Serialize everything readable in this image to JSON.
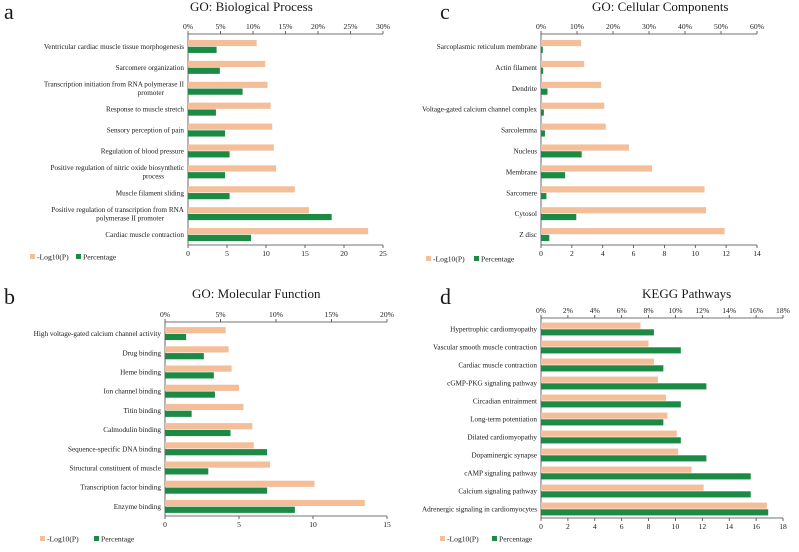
{
  "colors": {
    "log": "#f4bf98",
    "pct": "#1b8a45",
    "axis": "#444444"
  },
  "chart_data": [
    {
      "type": "bar",
      "panel": "a",
      "title": "GO: Biological Process",
      "categories": [
        "Ventricular cardiac muscle tissue morphogenesis",
        "Sarcomere organization",
        "Transcription initiation from RNA polymerase II promoter",
        "Response to muscle stretch",
        "Sensory perception of pain",
        "Regulation of blood pressure",
        "Positive regulation of nitric oxide biosynthetic process",
        "Muscle filament sliding",
        "Positive regulation of transcription from RNA polymerase II promoter",
        "Cardiac muscle contraction"
      ],
      "series": [
        {
          "name": "-Log10(P)",
          "values": [
            8.8,
            9.9,
            10.2,
            10.6,
            10.8,
            11.0,
            11.3,
            13.7,
            15.5,
            23.1
          ]
        },
        {
          "name": "Percentage",
          "values": [
            4.4,
            4.9,
            8.4,
            4.3,
            5.7,
            6.4,
            5.7,
            6.4,
            22.1,
            9.7
          ]
        }
      ],
      "bottom_axis": {
        "ticks": [
          "0",
          "5",
          "10",
          "15",
          "20",
          "25"
        ],
        "range": [
          0,
          25
        ]
      },
      "top_axis": {
        "ticks": [
          "0%",
          "5%",
          "10%",
          "15%",
          "20%",
          "25%",
          "30%"
        ],
        "range": [
          0,
          30
        ]
      }
    },
    {
      "type": "bar",
      "panel": "c",
      "title": "GO: Cellular Components",
      "categories": [
        "Sarcoplasmic reticulum membrane",
        "Actin filament",
        "Dendrite",
        "Voltage-gated calcium channel complex",
        "Sarcolemma",
        "Nucleus",
        "Membrane",
        "Sarcomere",
        "Cytosol",
        "Z disc"
      ],
      "series": [
        {
          "name": "-Log10(P)",
          "values": [
            2.6,
            2.8,
            3.9,
            4.1,
            4.2,
            5.7,
            7.2,
            10.6,
            10.7,
            11.9
          ]
        },
        {
          "name": "Percentage",
          "values": [
            0.5,
            0.6,
            1.8,
            0.8,
            1.1,
            11.3,
            6.7,
            1.5,
            9.8,
            2.3
          ]
        }
      ],
      "bottom_axis": {
        "ticks": [
          "0",
          "2",
          "4",
          "6",
          "8",
          "10",
          "12",
          "14"
        ],
        "range": [
          0,
          14
        ]
      },
      "top_axis": {
        "ticks": [
          "0%",
          "10%",
          "20%",
          "30%",
          "40%",
          "50%",
          "60%"
        ],
        "range": [
          0,
          60
        ]
      }
    },
    {
      "type": "bar",
      "panel": "b",
      "title": "GO: Molecular Function",
      "categories": [
        "High voltage-gated calcium channel activity",
        "Drug binding",
        "Heme binding",
        "Ion channel binding",
        "Titin binding",
        "Calmodulin binding",
        "Sequence-specific DNA binding",
        "Structural constituent of muscle",
        "Transcription factor binding",
        "Enzyme binding"
      ],
      "series": [
        {
          "name": "-Log10(P)",
          "values": [
            4.1,
            4.3,
            4.5,
            5.0,
            5.3,
            5.9,
            6.0,
            7.1,
            10.1,
            13.5
          ]
        },
        {
          "name": "Percentage",
          "values": [
            1.9,
            3.5,
            4.4,
            4.5,
            2.4,
            5.9,
            9.2,
            3.9,
            9.2,
            11.7
          ]
        }
      ],
      "bottom_axis": {
        "ticks": [
          "0",
          "5",
          "10",
          "15"
        ],
        "range": [
          0,
          15
        ]
      },
      "top_axis": {
        "ticks": [
          "0%",
          "5%",
          "10%",
          "15%",
          "20%"
        ],
        "range": [
          0,
          20
        ]
      }
    },
    {
      "type": "bar",
      "panel": "d",
      "title": "KEGG Pathways",
      "categories": [
        "Hypertrophic cardiomyopathy",
        "Vascular smooth muscle contraction",
        "Cardiac muscle contraction",
        "cGMP-PKG signaling pathway",
        "Circadian entrainment",
        "Long-term potentiation",
        "Dilated cardiomyopathy",
        "Dopaminergic synapse",
        "cAMP signaling pathway",
        "Calcium signaling pathway",
        "Adrenergic signaling in cardiomyocytes"
      ],
      "series": [
        {
          "name": "-Log10(P)",
          "values": [
            7.4,
            8.0,
            8.4,
            8.7,
            9.3,
            9.4,
            10.1,
            10.2,
            11.2,
            12.1,
            16.8
          ]
        },
        {
          "name": "Percentage",
          "values": [
            8.4,
            10.4,
            9.1,
            12.3,
            10.4,
            9.1,
            10.4,
            12.3,
            15.6,
            15.6,
            16.9
          ]
        }
      ],
      "bottom_axis": {
        "ticks": [
          "0",
          "2",
          "4",
          "6",
          "8",
          "10",
          "12",
          "14",
          "16",
          "18"
        ],
        "range": [
          0,
          18
        ]
      },
      "top_axis": {
        "ticks": [
          "0%",
          "2%",
          "4%",
          "6%",
          "8%",
          "10%",
          "12%",
          "14%",
          "16%",
          "18%"
        ],
        "range": [
          0,
          18
        ]
      }
    }
  ]
}
